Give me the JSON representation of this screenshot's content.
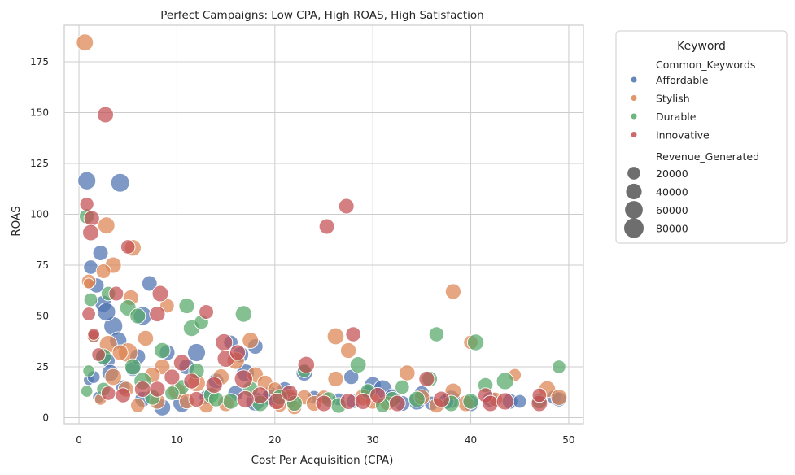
{
  "chart_data": {
    "type": "scatter",
    "title": "Perfect Campaigns: Low CPA, High ROAS, High Satisfaction",
    "xlabel": "Cost Per Acquisition (CPA)",
    "ylabel": "ROAS",
    "xlim": [
      -1.5,
      51.5
    ],
    "ylim": [
      -3,
      193
    ],
    "xticks": [
      0,
      10,
      20,
      30,
      40,
      50
    ],
    "yticks": [
      0,
      25,
      50,
      75,
      100,
      125,
      150,
      175
    ],
    "grid": true,
    "legend": {
      "title": "Keyword",
      "placement": "outside-right-top",
      "hue_title": "Common_Keywords",
      "size_title": "Revenue_Generated",
      "size_entries": [
        20000,
        40000,
        60000,
        80000
      ]
    },
    "size_range": [
      2000,
      90000
    ],
    "series": [
      {
        "name": "Affordable",
        "color": "#4c72b0",
        "points": [
          [
            0.8,
            116.5,
            62000
          ],
          [
            4.2,
            115.5,
            70000
          ],
          [
            1.2,
            74,
            30000
          ],
          [
            1.8,
            65,
            35000
          ],
          [
            2.5,
            56,
            50000
          ],
          [
            2.2,
            81,
            38000
          ],
          [
            3.5,
            45,
            72000
          ],
          [
            7.2,
            66,
            38000
          ],
          [
            6.5,
            50,
            70000
          ],
          [
            2.8,
            52,
            65000
          ],
          [
            1.5,
            40,
            20000
          ],
          [
            4.0,
            38,
            55000
          ],
          [
            2.5,
            30,
            45000
          ],
          [
            3.0,
            28,
            25000
          ],
          [
            1.0,
            18.5,
            10000
          ],
          [
            9.0,
            32,
            40000
          ],
          [
            12,
            32,
            62000
          ],
          [
            15.5,
            37,
            30000
          ],
          [
            16.5,
            31,
            45000
          ],
          [
            18,
            35,
            38000
          ],
          [
            5.5,
            24,
            35000
          ],
          [
            6.0,
            30,
            40000
          ],
          [
            3.2,
            22,
            50000
          ],
          [
            11,
            25,
            40000
          ],
          [
            14,
            18,
            40000
          ],
          [
            17,
            22,
            60000
          ],
          [
            19.5,
            12,
            30000
          ],
          [
            21,
            14,
            35000
          ],
          [
            23,
            22,
            45000
          ],
          [
            24,
            10,
            25000
          ],
          [
            27.8,
            20,
            35000
          ],
          [
            30,
            16,
            50000
          ],
          [
            31,
            14,
            70000
          ],
          [
            32,
            10,
            50000
          ],
          [
            34.5,
            8,
            55000
          ],
          [
            35,
            12,
            35000
          ],
          [
            36,
            7,
            30000
          ],
          [
            38,
            9,
            65000
          ],
          [
            40,
            7,
            45000
          ],
          [
            42,
            9,
            40000
          ],
          [
            44,
            8,
            40000
          ],
          [
            45,
            8,
            25000
          ],
          [
            48.5,
            10,
            30000
          ],
          [
            49,
            9,
            35000
          ],
          [
            26.5,
            9,
            20000
          ],
          [
            28,
            8,
            30000
          ],
          [
            29.5,
            12,
            35000
          ],
          [
            18,
            8,
            75000
          ],
          [
            19.5,
            10,
            50000
          ],
          [
            21.5,
            9,
            45000
          ],
          [
            10.5,
            7,
            60000
          ],
          [
            8.5,
            5,
            50000
          ],
          [
            6.5,
            9,
            40000
          ],
          [
            13,
            10,
            30000
          ],
          [
            16,
            12,
            40000
          ],
          [
            2.0,
            10,
            15000
          ],
          [
            1.5,
            20,
            20000
          ],
          [
            4.5,
            15,
            30000
          ],
          [
            33,
            7,
            40000
          ],
          [
            37.5,
            8,
            40000
          ]
        ]
      },
      {
        "name": "Stylish",
        "color": "#dd8452",
        "points": [
          [
            0.6,
            184.5,
            52000
          ],
          [
            2.8,
            94.5,
            52000
          ],
          [
            5.5,
            83.5,
            48000
          ],
          [
            3.5,
            75,
            45000
          ],
          [
            1.0,
            67,
            30000
          ],
          [
            2.5,
            72,
            32000
          ],
          [
            5.3,
            59,
            40000
          ],
          [
            6.8,
            39,
            42000
          ],
          [
            5.0,
            32,
            78000
          ],
          [
            3.0,
            36,
            62000
          ],
          [
            4.2,
            32,
            40000
          ],
          [
            8.5,
            25,
            40000
          ],
          [
            9.0,
            55,
            30000
          ],
          [
            7.5,
            21,
            40000
          ],
          [
            3.5,
            20,
            50000
          ],
          [
            1.5,
            40,
            20000
          ],
          [
            1.0,
            66,
            10000
          ],
          [
            10,
            13,
            55000
          ],
          [
            12,
            17,
            60000
          ],
          [
            14.5,
            20,
            45000
          ],
          [
            16,
            28,
            55000
          ],
          [
            17.5,
            38,
            45000
          ],
          [
            18,
            21,
            45000
          ],
          [
            19,
            17,
            40000
          ],
          [
            20,
            14,
            30000
          ],
          [
            21.5,
            10,
            45000
          ],
          [
            23,
            10,
            35000
          ],
          [
            24,
            7,
            40000
          ],
          [
            25,
            10,
            30000
          ],
          [
            26.2,
            40,
            50000
          ],
          [
            26.2,
            19,
            40000
          ],
          [
            27.5,
            33,
            40000
          ],
          [
            29,
            10,
            50000
          ],
          [
            30,
            8,
            40000
          ],
          [
            33.5,
            22,
            42000
          ],
          [
            35,
            10,
            40000
          ],
          [
            38.2,
            62,
            40000
          ],
          [
            38.2,
            13,
            45000
          ],
          [
            39.5,
            7,
            45000
          ],
          [
            40,
            37,
            30000
          ],
          [
            42.5,
            9,
            30000
          ],
          [
            44.5,
            21,
            20000
          ],
          [
            47.8,
            14,
            50000
          ],
          [
            49,
            10,
            45000
          ],
          [
            11,
            8,
            35000
          ],
          [
            13,
            6,
            35000
          ],
          [
            15,
            7,
            45000
          ],
          [
            8,
            8,
            40000
          ],
          [
            6,
            6,
            30000
          ],
          [
            2.2,
            9,
            15000
          ],
          [
            4.8,
            14,
            40000
          ],
          [
            20.5,
            6,
            25000
          ],
          [
            22,
            5,
            30000
          ],
          [
            31.5,
            7,
            30000
          ],
          [
            36.5,
            6,
            35000
          ]
        ]
      },
      {
        "name": "Durable",
        "color": "#55a868",
        "points": [
          [
            0.8,
            99,
            35000
          ],
          [
            1.2,
            58,
            25000
          ],
          [
            3.0,
            61,
            30000
          ],
          [
            5.0,
            54,
            45000
          ],
          [
            6.0,
            50,
            40000
          ],
          [
            11,
            55,
            40000
          ],
          [
            11.5,
            44,
            48000
          ],
          [
            12.5,
            47,
            30000
          ],
          [
            16.8,
            51,
            48000
          ],
          [
            2.5,
            30,
            40000
          ],
          [
            5.5,
            25,
            45000
          ],
          [
            6.5,
            18,
            55000
          ],
          [
            8.5,
            33,
            42000
          ],
          [
            10.5,
            15,
            35000
          ],
          [
            12,
            23,
            40000
          ],
          [
            13.5,
            11,
            38000
          ],
          [
            15.5,
            8,
            42000
          ],
          [
            17.5,
            14,
            40000
          ],
          [
            20.5,
            10,
            40000
          ],
          [
            23,
            23,
            25000
          ],
          [
            25.5,
            9,
            35000
          ],
          [
            28.5,
            26,
            45000
          ],
          [
            29.5,
            13,
            35000
          ],
          [
            32,
            9,
            40000
          ],
          [
            33,
            15,
            30000
          ],
          [
            34.5,
            9,
            45000
          ],
          [
            35.8,
            19,
            40000
          ],
          [
            36.5,
            41,
            35000
          ],
          [
            38,
            7,
            45000
          ],
          [
            40,
            8,
            42000
          ],
          [
            40.5,
            37,
            48000
          ],
          [
            41.5,
            16,
            35000
          ],
          [
            43.5,
            18,
            55000
          ],
          [
            47,
            8,
            35000
          ],
          [
            49,
            25,
            25000
          ],
          [
            1.0,
            23,
            15000
          ],
          [
            2.5,
            14,
            25000
          ],
          [
            0.8,
            13,
            15000
          ],
          [
            7.5,
            10,
            40000
          ],
          [
            9.5,
            12,
            30000
          ],
          [
            18.5,
            7,
            45000
          ],
          [
            22,
            7,
            40000
          ],
          [
            26.5,
            6,
            40000
          ],
          [
            31,
            6,
            30000
          ],
          [
            14,
            9,
            35000
          ]
        ]
      },
      {
        "name": "Innovative",
        "color": "#c44e52",
        "points": [
          [
            2.7,
            149,
            45000
          ],
          [
            0.8,
            105,
            28000
          ],
          [
            1.3,
            98,
            40000
          ],
          [
            1.2,
            91,
            45000
          ],
          [
            5.0,
            84,
            30000
          ],
          [
            27.3,
            104,
            38000
          ],
          [
            25.3,
            94,
            38000
          ],
          [
            3.8,
            61,
            32000
          ],
          [
            8.3,
            61,
            45000
          ],
          [
            8.0,
            51,
            40000
          ],
          [
            13,
            52,
            32000
          ],
          [
            1.0,
            51,
            25000
          ],
          [
            14.8,
            37,
            55000
          ],
          [
            15,
            29,
            55000
          ],
          [
            16.2,
            32,
            40000
          ],
          [
            10.5,
            27,
            48000
          ],
          [
            9.5,
            20,
            40000
          ],
          [
            11.5,
            18,
            42000
          ],
          [
            13.8,
            16,
            48000
          ],
          [
            16.8,
            19,
            65000
          ],
          [
            8,
            14,
            42000
          ],
          [
            4.5,
            11,
            35000
          ],
          [
            2.0,
            31,
            25000
          ],
          [
            1.5,
            41,
            15000
          ],
          [
            6.5,
            14,
            45000
          ],
          [
            18.5,
            11,
            50000
          ],
          [
            20.2,
            8,
            48000
          ],
          [
            23.2,
            26,
            50000
          ],
          [
            27.5,
            8,
            45000
          ],
          [
            28,
            41,
            35000
          ],
          [
            30.5,
            11,
            40000
          ],
          [
            32.5,
            7,
            45000
          ],
          [
            35.5,
            19,
            40000
          ],
          [
            37,
            9,
            45000
          ],
          [
            41.5,
            11,
            35000
          ],
          [
            42,
            7,
            45000
          ],
          [
            43.5,
            8,
            55000
          ],
          [
            47,
            7,
            45000
          ],
          [
            47,
            11,
            30000
          ],
          [
            12,
            9,
            40000
          ],
          [
            17,
            9,
            55000
          ],
          [
            21.5,
            12,
            45000
          ],
          [
            25,
            7,
            45000
          ],
          [
            29,
            8,
            45000
          ],
          [
            3.0,
            12,
            30000
          ]
        ]
      }
    ]
  }
}
